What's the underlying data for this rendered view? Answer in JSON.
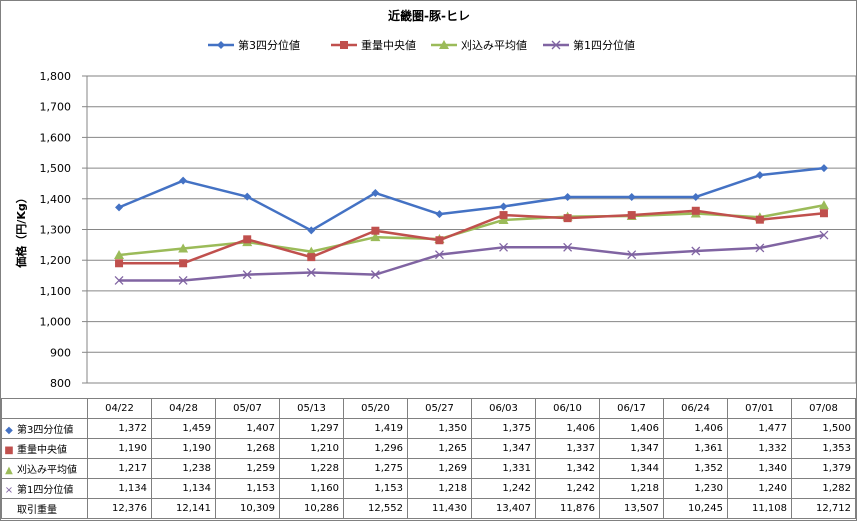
{
  "chart_data": {
    "type": "line",
    "title": "近畿圏-豚-ヒレ",
    "ylabel": "価格（円/Kg）",
    "xlabel": "",
    "ylim": [
      800,
      1800
    ],
    "yticks": [
      800,
      900,
      1000,
      1100,
      1200,
      1300,
      1400,
      1500,
      1600,
      1700,
      1800
    ],
    "ytick_labels": [
      "800",
      "900",
      "1,000",
      "1,100",
      "1,200",
      "1,300",
      "1,400",
      "1,500",
      "1,600",
      "1,700",
      "1,800"
    ],
    "grid": true,
    "legend_position": "top",
    "categories": [
      "04/22",
      "04/28",
      "05/07",
      "05/13",
      "05/20",
      "05/27",
      "06/03",
      "06/10",
      "06/17",
      "06/24",
      "07/01",
      "07/08"
    ],
    "series": [
      {
        "name": "第3四分位値",
        "color": "#4472C4",
        "marker": "diamond",
        "values": [
          1372,
          1459,
          1407,
          1297,
          1419,
          1350,
          1375,
          1406,
          1406,
          1406,
          1477,
          1500
        ]
      },
      {
        "name": "重量中央値",
        "color": "#C0504D",
        "marker": "square",
        "values": [
          1190,
          1190,
          1268,
          1210,
          1296,
          1265,
          1347,
          1337,
          1347,
          1361,
          1332,
          1353
        ]
      },
      {
        "name": "刈込み平均値",
        "color": "#9BBB59",
        "marker": "triangle",
        "values": [
          1217,
          1238,
          1259,
          1228,
          1275,
          1269,
          1331,
          1342,
          1344,
          1352,
          1340,
          1379
        ]
      },
      {
        "name": "第1四分位値",
        "color": "#8064A2",
        "marker": "x",
        "values": [
          1134,
          1134,
          1153,
          1160,
          1153,
          1218,
          1242,
          1242,
          1218,
          1230,
          1240,
          1282
        ]
      }
    ]
  },
  "table": {
    "rows": [
      {
        "label": "第3四分位値",
        "marker": "◆",
        "color": "#4472C4",
        "cells": [
          "1,372",
          "1,459",
          "1,407",
          "1,297",
          "1,419",
          "1,350",
          "1,375",
          "1,406",
          "1,406",
          "1,406",
          "1,477",
          "1,500"
        ]
      },
      {
        "label": "重量中央値",
        "marker": "■",
        "color": "#C0504D",
        "cells": [
          "1,190",
          "1,190",
          "1,268",
          "1,210",
          "1,296",
          "1,265",
          "1,347",
          "1,337",
          "1,347",
          "1,361",
          "1,332",
          "1,353"
        ]
      },
      {
        "label": "刈込み平均値",
        "marker": "▲",
        "color": "#9BBB59",
        "cells": [
          "1,217",
          "1,238",
          "1,259",
          "1,228",
          "1,275",
          "1,269",
          "1,331",
          "1,342",
          "1,344",
          "1,352",
          "1,340",
          "1,379"
        ]
      },
      {
        "label": "第1四分位値",
        "marker": "×",
        "color": "#8064A2",
        "cells": [
          "1,134",
          "1,134",
          "1,153",
          "1,160",
          "1,153",
          "1,218",
          "1,242",
          "1,242",
          "1,218",
          "1,230",
          "1,240",
          "1,282"
        ]
      },
      {
        "label": "取引重量",
        "marker": "",
        "color": "",
        "cells": [
          "12,376",
          "12,141",
          "10,309",
          "10,286",
          "12,552",
          "11,430",
          "13,407",
          "11,876",
          "13,507",
          "10,245",
          "11,108",
          "12,712"
        ]
      }
    ]
  }
}
